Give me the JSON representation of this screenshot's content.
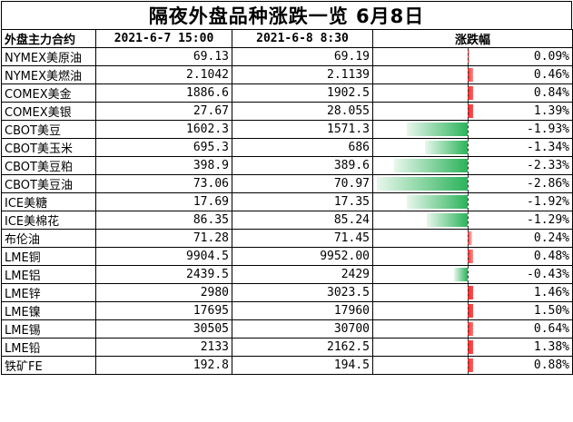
{
  "title": "隔夜外盘品种涨跌一览 6月8日",
  "headers": {
    "name": "外盘主力合约",
    "date1": "2021-6-7 15:00",
    "date2": "2021-6-8 8:30",
    "change": "涨跌幅"
  },
  "colors": {
    "up": "#ff2a2a",
    "down": "#2bb35a"
  },
  "rows": [
    {
      "name": "NYMEX美原油",
      "v1": "69.13",
      "v2": "69.19",
      "pct": "0.09%",
      "change": 0.09
    },
    {
      "name": "NYMEX美燃油",
      "v1": "2.1042",
      "v2": "2.1139",
      "pct": "0.46%",
      "change": 0.46
    },
    {
      "name": "COMEX美金",
      "v1": "1886.6",
      "v2": "1902.5",
      "pct": "0.84%",
      "change": 0.84
    },
    {
      "name": "COMEX美银",
      "v1": "27.67",
      "v2": "28.055",
      "pct": "1.39%",
      "change": 1.39
    },
    {
      "name": "CBOT美豆",
      "v1": "1602.3",
      "v2": "1571.3",
      "pct": "-1.93%",
      "change": -1.93
    },
    {
      "name": "CBOT美玉米",
      "v1": "695.3",
      "v2": "686",
      "pct": "-1.34%",
      "change": -1.34
    },
    {
      "name": "CBOT美豆粕",
      "v1": "398.9",
      "v2": "389.6",
      "pct": "-2.33%",
      "change": -2.33
    },
    {
      "name": "CBOT美豆油",
      "v1": "73.06",
      "v2": "70.97",
      "pct": "-2.86%",
      "change": -2.86
    },
    {
      "name": "ICE美糖",
      "v1": "17.69",
      "v2": "17.35",
      "pct": "-1.92%",
      "change": -1.92
    },
    {
      "name": "ICE美棉花",
      "v1": "86.35",
      "v2": "85.24",
      "pct": "-1.29%",
      "change": -1.29
    },
    {
      "name": "布伦油",
      "v1": "71.28",
      "v2": "71.45",
      "pct": "0.24%",
      "change": 0.24
    },
    {
      "name": "LME铜",
      "v1": "9904.5",
      "v2": "9952.00",
      "pct": "0.48%",
      "change": 0.48
    },
    {
      "name": "LME铝",
      "v1": "2439.5",
      "v2": "2429",
      "pct": "-0.43%",
      "change": -0.43
    },
    {
      "name": "LME锌",
      "v1": "2980",
      "v2": "3023.5",
      "pct": "1.46%",
      "change": 1.46
    },
    {
      "name": "LME镍",
      "v1": "17695",
      "v2": "17960",
      "pct": "1.50%",
      "change": 1.5
    },
    {
      "name": "LME锡",
      "v1": "30505",
      "v2": "30700",
      "pct": "0.64%",
      "change": 0.64
    },
    {
      "name": "LME铅",
      "v1": "2133",
      "v2": "2162.5",
      "pct": "1.38%",
      "change": 1.38
    },
    {
      "name": "铁矿FE",
      "v1": "192.8",
      "v2": "194.5",
      "pct": "0.88%",
      "change": 0.88
    }
  ]
}
